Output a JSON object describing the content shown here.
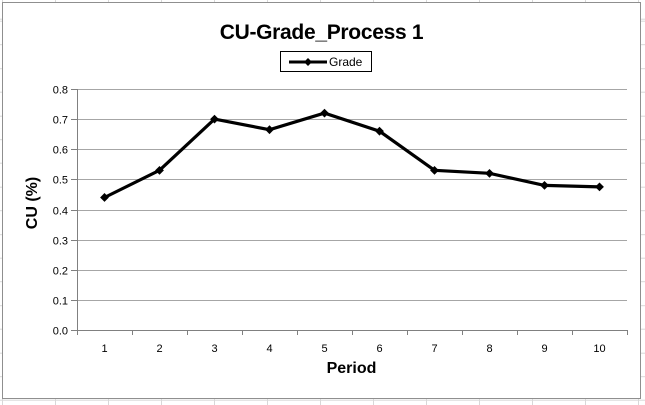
{
  "chart_data": {
    "type": "line",
    "title": "CU-Grade_Process 1",
    "legend": "Grade",
    "legend_position": "top-center",
    "xlabel": "Period",
    "ylabel": "CU (%)",
    "x": [
      1,
      2,
      3,
      4,
      5,
      6,
      7,
      8,
      9,
      10
    ],
    "x_tick_labels": [
      "1",
      "2",
      "3",
      "4",
      "5",
      "6",
      "7",
      "8",
      "9",
      "10"
    ],
    "series": [
      {
        "name": "Grade",
        "values": [
          0.44,
          0.53,
          0.7,
          0.665,
          0.72,
          0.66,
          0.53,
          0.52,
          0.48,
          0.475
        ],
        "marker": "diamond",
        "color": "#000000"
      }
    ],
    "ylim": [
      0.0,
      0.8
    ],
    "y_ticks": [
      0.0,
      0.1,
      0.2,
      0.3,
      0.4,
      0.5,
      0.6,
      0.7,
      0.8
    ],
    "y_tick_labels": [
      "0.0",
      "0.1",
      "0.2",
      "0.3",
      "0.4",
      "0.5",
      "0.6",
      "0.7",
      "0.8"
    ],
    "grid": "horizontal",
    "colors": {
      "series": "#000000",
      "gridline": "#a6a6a6",
      "axis": "#808080",
      "tick_text": "#000000"
    }
  }
}
